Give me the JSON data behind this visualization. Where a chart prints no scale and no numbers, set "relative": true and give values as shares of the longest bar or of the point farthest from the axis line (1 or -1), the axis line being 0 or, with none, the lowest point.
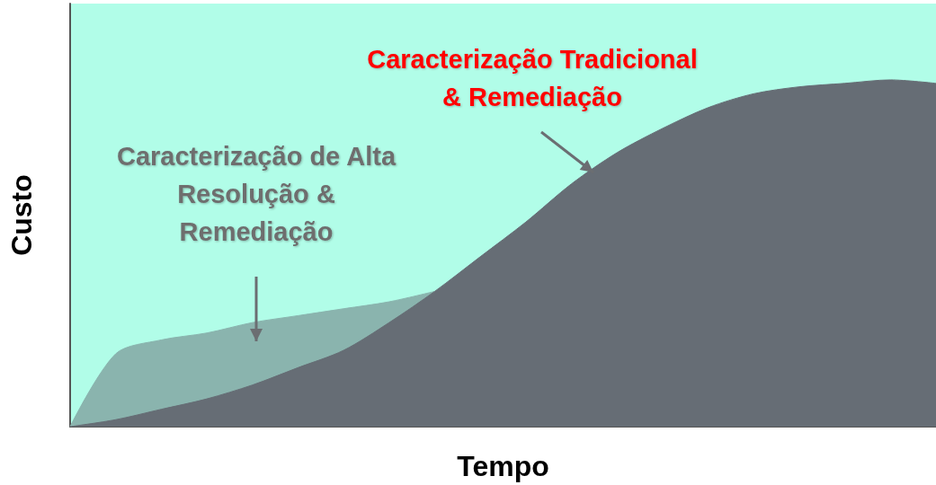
{
  "chart_data": {
    "type": "area",
    "relative": true,
    "xlabel": "Tempo",
    "ylabel": "Custo",
    "categories": [
      null,
      null,
      null,
      null,
      null,
      null,
      null,
      null,
      null,
      null,
      null,
      null,
      null,
      null,
      null,
      null,
      null,
      null,
      null,
      null
    ],
    "series": [
      {
        "color": "#8ab4ae",
        "values": [
          0,
          0.21,
          0.25,
          0.27,
          0.3,
          0.32,
          0.34,
          0.36,
          0.39,
          null,
          null,
          null,
          null,
          null,
          null,
          null,
          null,
          null,
          null,
          null
        ]
      },
      {
        "color": "#666d75",
        "values": [
          0,
          0.02,
          0.05,
          0.08,
          0.12,
          0.17,
          0.22,
          0.3,
          0.39,
          0.49,
          0.59,
          0.7,
          0.79,
          0.86,
          0.92,
          0.96,
          0.98,
          0.99,
          1,
          0.99
        ]
      }
    ],
    "annotations": [
      "Caracterização Tradicional\n& Remediação",
      "Caracterização de Alta\nResolução &\nRemediação"
    ],
    "grid": false
  }
}
